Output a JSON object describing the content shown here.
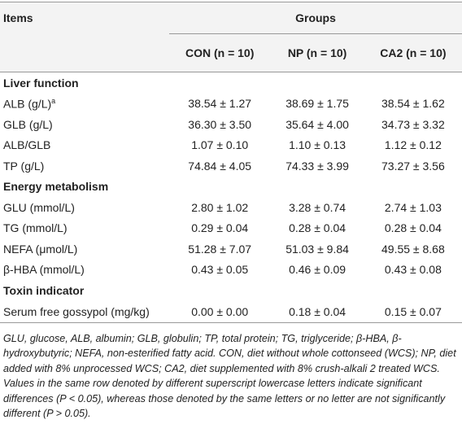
{
  "table": {
    "header": {
      "items": "Items",
      "groups": "Groups",
      "columns": [
        "CON (n = 10)",
        "NP (n = 10)",
        "CA2 (n = 10)"
      ]
    },
    "sections": [
      {
        "title": "Liver function",
        "rows": [
          {
            "item": "ALB (g/L)",
            "sup": "a",
            "values": [
              "38.54 ± 1.27",
              "38.69 ± 1.75",
              "38.54 ± 1.62"
            ]
          },
          {
            "item": "GLB (g/L)",
            "values": [
              "36.30 ± 3.50",
              "35.64 ± 4.00",
              "34.73 ± 3.32"
            ]
          },
          {
            "item": "ALB/GLB",
            "values": [
              "1.07 ± 0.10",
              "1.10 ± 0.13",
              "1.12 ± 0.12"
            ]
          },
          {
            "item": "TP (g/L)",
            "values": [
              "74.84 ± 4.05",
              "74.33 ± 3.99",
              "73.27 ± 3.56"
            ]
          }
        ]
      },
      {
        "title": "Energy metabolism",
        "rows": [
          {
            "item": "GLU (mmol/L)",
            "values": [
              "2.80 ± 1.02",
              "3.28 ± 0.74",
              "2.74 ± 1.03"
            ]
          },
          {
            "item": "TG (mmol/L)",
            "values": [
              "0.29 ± 0.04",
              "0.28 ± 0.04",
              "0.28 ± 0.04"
            ]
          },
          {
            "item": "NEFA (μmol/L)",
            "values": [
              "51.28 ± 7.07",
              "51.03 ± 9.84",
              "49.55 ± 8.68"
            ]
          },
          {
            "item": "β-HBA (mmol/L)",
            "values": [
              "0.43 ± 0.05",
              "0.46 ± 0.09",
              "0.43 ± 0.08"
            ]
          }
        ]
      },
      {
        "title": "Toxin indicator",
        "rows": [
          {
            "item": "Serum free gossypol (mg/kg)",
            "values": [
              "0.00 ± 0.00",
              "0.18 ± 0.04",
              "0.15 ± 0.07"
            ]
          }
        ]
      }
    ],
    "footnote": "GLU, glucose, ALB, albumin; GLB, globulin; TP, total protein; TG, triglyceride; β-HBA, β-hydroxybutyric; NEFA, non-esterified fatty acid. CON, diet without whole cottonseed (WCS); NP, diet added with 8% unprocessed WCS; CA2, diet supplemented with 8% crush-alkali 2 treated WCS. Values in the same row denoted by different superscript lowercase letters indicate significant differences (P < 0.05), whereas those denoted by the same letters or no letter are not significantly different (P > 0.05)."
  }
}
